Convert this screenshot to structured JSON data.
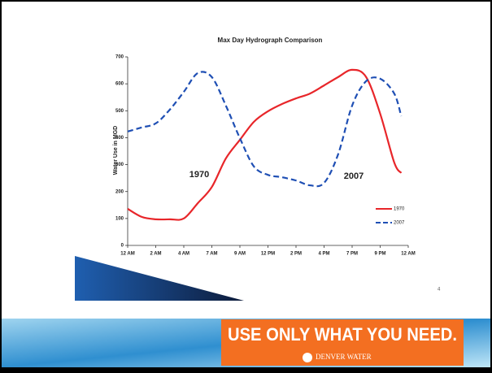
{
  "chart_data": {
    "type": "line",
    "title": "Max Day Hydrograph Comparison",
    "y_label": "Water Use in MGD",
    "x": [
      0,
      0.5,
      1,
      1.5,
      2,
      2.5,
      3,
      3.5,
      4,
      4.5,
      5,
      5.5,
      6,
      6.5,
      7,
      7.5,
      8,
      8.5,
      9,
      9.5,
      9.75
    ],
    "series": [
      {
        "name": "1970",
        "color": "#e8262a",
        "dash": false,
        "values": [
          136,
          106,
          97,
          97,
          100,
          157,
          217,
          323,
          392,
          459,
          498,
          525,
          546,
          564,
          594,
          625,
          652,
          625,
          489,
          308,
          269
        ]
      },
      {
        "name": "2007",
        "color": "#1f4fb4",
        "dash": true,
        "values": [
          423,
          438,
          453,
          504,
          570,
          640,
          625,
          519,
          398,
          293,
          262,
          253,
          241,
          223,
          232,
          338,
          519,
          610,
          619,
          564,
          480
        ]
      }
    ],
    "annotations": [
      "1970",
      "2007"
    ],
    "xlim": [
      0,
      10
    ],
    "xticks": [
      {
        "value": 0,
        "label": "12 AM"
      },
      {
        "value": 1,
        "label": "2 AM"
      },
      {
        "value": 2,
        "label": "4 AM"
      },
      {
        "value": 3,
        "label": "7 AM"
      },
      {
        "value": 4,
        "label": "9 AM"
      },
      {
        "value": 5,
        "label": "12 PM"
      },
      {
        "value": 6,
        "label": "2 PM"
      },
      {
        "value": 7,
        "label": "4 PM"
      },
      {
        "value": 8,
        "label": "7 PM"
      },
      {
        "value": 9,
        "label": "9 PM"
      },
      {
        "value": 10,
        "label": "12 AM"
      }
    ],
    "ylim": [
      0,
      700
    ],
    "yticks": [
      0,
      100,
      200,
      300,
      400,
      500,
      600,
      700
    ],
    "legend": "lower right"
  },
  "page_number": "4",
  "banner": {
    "slogan": "USE ONLY WHAT YOU NEED.",
    "brand": "DENVER WATER"
  }
}
